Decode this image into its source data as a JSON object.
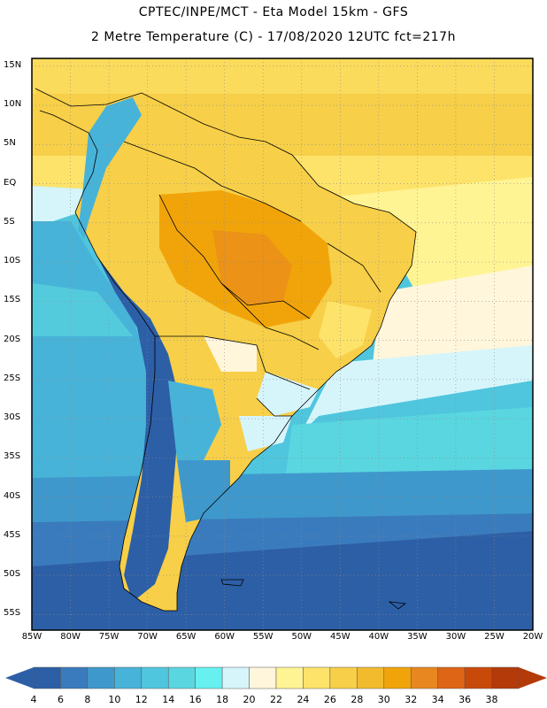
{
  "header": {
    "line1": "CPTEC/INPE/MCT -  Eta Model 15km - GFS",
    "line2": "2 Metre Temperature (C) - 17/08/2020 12UTC fct=217h"
  },
  "map": {
    "lon_range": [
      -85,
      -20
    ],
    "lat_range": [
      -57,
      16
    ],
    "lat_ticks": [
      "15N",
      "10N",
      "5N",
      "EQ",
      "5S",
      "10S",
      "15S",
      "20S",
      "25S",
      "30S",
      "35S",
      "40S",
      "45S",
      "50S",
      "55S"
    ],
    "lon_ticks": [
      "85W",
      "80W",
      "75W",
      "70W",
      "65W",
      "60W",
      "55W",
      "50W",
      "45W",
      "40W",
      "35W",
      "30W",
      "25W",
      "20W"
    ],
    "grid": true
  },
  "colorbar": {
    "ticks": [
      "4",
      "6",
      "8",
      "10",
      "12",
      "14",
      "16",
      "18",
      "20",
      "22",
      "24",
      "26",
      "28",
      "30",
      "32",
      "34",
      "36",
      "38"
    ],
    "colors": [
      "#2d5fa6",
      "#3a7bbd",
      "#3f98cc",
      "#48b3d8",
      "#4fc6dd",
      "#5ad6e0",
      "#66f0f0",
      "#d6f5fb",
      "#fff6dc",
      "#fff494",
      "#fde36a",
      "#f7cf48",
      "#f2bb2e",
      "#f1a40a",
      "#e8871f",
      "#dd6515",
      "#c84a0a",
      "#b43a0a"
    ],
    "arrow_left_color": "#2d5fa6",
    "arrow_right_color": "#b43a0a"
  },
  "colors": {
    "frame": "#000000",
    "grid": "#8a8a8a",
    "coast": "#000000"
  }
}
